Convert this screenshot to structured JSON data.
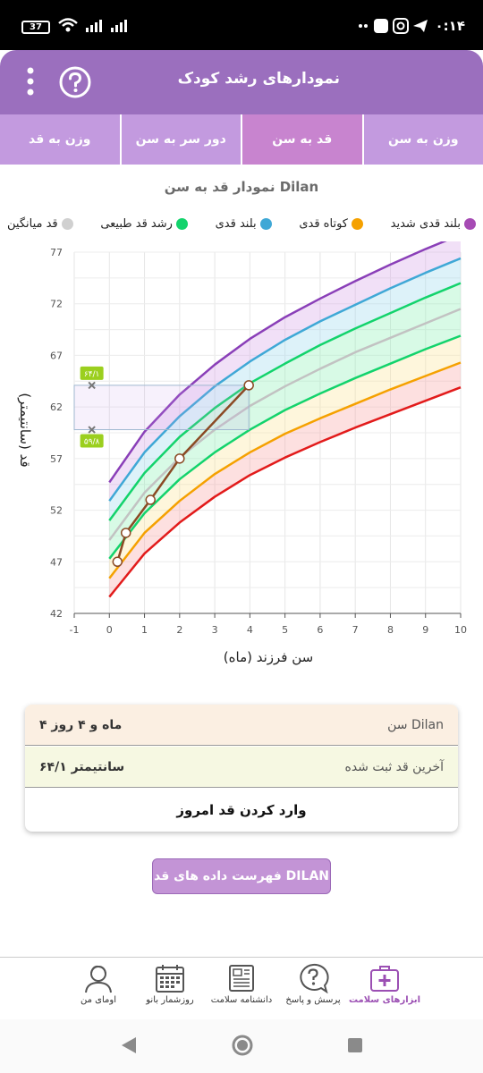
{
  "status_bar": {
    "time": "۰:۱۴",
    "battery": "37"
  },
  "header": {
    "title": "نمودارهای رشد کودک"
  },
  "tabs": [
    {
      "label": "وزن به سن",
      "active": false
    },
    {
      "label": "قد به سن",
      "active": true
    },
    {
      "label": "دور سر به سن",
      "active": false
    },
    {
      "label": "وزن به قد",
      "active": false
    }
  ],
  "chart_title": "نمودار قد به سن Dilan",
  "legend": [
    {
      "label": "بلند قدی شدید",
      "color": "#a64bb4"
    },
    {
      "label": "کوتاه قدی",
      "color": "#f5a100"
    },
    {
      "label": "بلند قدی",
      "color": "#3fa8d6"
    },
    {
      "label": "رشد قد طبیعی",
      "color": "#13d36c"
    },
    {
      "label": "قد میانگین",
      "color": "#d0d0d0"
    }
  ],
  "chart_data": {
    "type": "line",
    "xlabel": "سن فرزند (ماه)",
    "ylabel": "قد (سانتیمتر)",
    "xlim": [
      -1,
      10
    ],
    "ylim": [
      42,
      77
    ],
    "x_ticks": [
      -1,
      0,
      1,
      2,
      3,
      4,
      5,
      6,
      7,
      8,
      9,
      10
    ],
    "y_ticks": [
      42,
      47,
      52,
      57,
      62,
      67,
      72,
      77
    ],
    "x": [
      0,
      1,
      2,
      3,
      4,
      5,
      6,
      7,
      8,
      9,
      10
    ],
    "series": [
      {
        "role": "very_tall",
        "color": "#8a3fb8",
        "values": [
          54.7,
          59.6,
          63.2,
          66.1,
          68.6,
          70.7,
          72.5,
          74.2,
          75.8,
          77.3,
          78.7
        ]
      },
      {
        "role": "tall",
        "color": "#3fa8d6",
        "values": [
          52.9,
          57.6,
          61.1,
          64.0,
          66.4,
          68.5,
          70.3,
          71.9,
          73.5,
          75.0,
          76.4
        ]
      },
      {
        "role": "normal_upper",
        "color": "#13d36c",
        "values": [
          51.0,
          55.6,
          59.1,
          61.9,
          64.3,
          66.2,
          68.0,
          69.6,
          71.1,
          72.6,
          74.0
        ]
      },
      {
        "role": "average",
        "color": "#c2c2c2",
        "values": [
          49.1,
          53.7,
          57.1,
          59.8,
          62.1,
          64.0,
          65.7,
          67.3,
          68.7,
          70.1,
          71.5
        ]
      },
      {
        "role": "normal_lower",
        "color": "#13d36c",
        "values": [
          47.3,
          51.7,
          55.0,
          57.6,
          59.8,
          61.7,
          63.3,
          64.8,
          66.2,
          67.6,
          68.9
        ]
      },
      {
        "role": "short",
        "color": "#f5a100",
        "values": [
          45.4,
          49.8,
          52.9,
          55.5,
          57.6,
          59.4,
          60.9,
          62.3,
          63.7,
          65.0,
          66.3
        ]
      },
      {
        "role": "very_short",
        "color": "#e21b1b",
        "values": [
          43.6,
          47.8,
          50.8,
          53.3,
          55.4,
          57.1,
          58.6,
          60.0,
          61.3,
          62.6,
          63.9
        ]
      }
    ],
    "bands": [
      {
        "upper": "very_tall",
        "lower": "tall",
        "color": "#d8a5e8"
      },
      {
        "upper": "tall",
        "lower": "normal_upper",
        "color": "#9fd9ef"
      },
      {
        "upper": "normal_upper",
        "lower": "normal_lower",
        "color": "#8ff0b8"
      },
      {
        "upper": "normal_lower",
        "lower": "short",
        "color": "#fce59c"
      },
      {
        "upper": "short",
        "lower": "very_short",
        "color": "#f9a6a6"
      }
    ],
    "child_series": {
      "color": "#8b4a24",
      "points": [
        {
          "x": 0.23,
          "y": 47.0
        },
        {
          "x": 0.47,
          "y": 49.8
        },
        {
          "x": 1.17,
          "y": 53.0
        },
        {
          "x": 2.0,
          "y": 57.0
        },
        {
          "x": 3.97,
          "y": 64.1
        }
      ]
    },
    "highlight": {
      "upper_value": 64.1,
      "lower_value": 59.8,
      "upper_label": "۶۴/۱",
      "lower_label": "۵۹/۸",
      "x_to": 3.97
    }
  },
  "info": {
    "age_label": "سن Dilan",
    "age_value": "۴ ماه و ۴ روز",
    "height_label": "آخرین قد ثبت شده",
    "height_value": "۶۴/۱ سانتیمتر",
    "enter_button": "وارد کردن قد امروز"
  },
  "list_button": "فهرست داده های قد DILAN",
  "bottom_nav": [
    {
      "label": "ابزارهای سلامت",
      "icon": "first-aid-kit-icon",
      "active": true
    },
    {
      "label": "پرسش و پاسخ",
      "icon": "question-bubble-icon",
      "active": false
    },
    {
      "label": "دانشنامه سلامت",
      "icon": "newspaper-icon",
      "active": false
    },
    {
      "label": "روزشمار بانو",
      "icon": "calendar-icon",
      "active": false
    },
    {
      "label": "اومای من",
      "icon": "user-avatar-icon",
      "active": false
    }
  ]
}
